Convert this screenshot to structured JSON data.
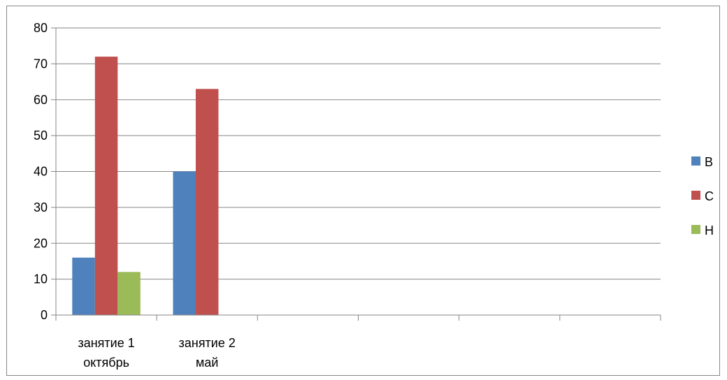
{
  "chart_data": {
    "type": "bar",
    "title": "",
    "xlabel": "",
    "ylabel": "",
    "categories": [
      [
        "занятие 1",
        "октябрь"
      ],
      [
        "занятие 2",
        "май"
      ],
      [
        ""
      ],
      [
        ""
      ],
      [
        ""
      ],
      [
        ""
      ]
    ],
    "series": [
      {
        "name": "В",
        "color": "#4F81BD",
        "values": [
          16,
          40,
          null,
          null,
          null,
          null
        ]
      },
      {
        "name": "С",
        "color": "#C0504D",
        "values": [
          72,
          63,
          null,
          null,
          null,
          null
        ]
      },
      {
        "name": "Н",
        "color": "#9BBB59",
        "values": [
          12,
          null,
          null,
          null,
          null,
          null
        ]
      }
    ],
    "ylim": [
      0,
      80
    ],
    "yticks": [
      0,
      10,
      20,
      30,
      40,
      50,
      60,
      70,
      80
    ],
    "grid": true,
    "legend_position": "right"
  }
}
